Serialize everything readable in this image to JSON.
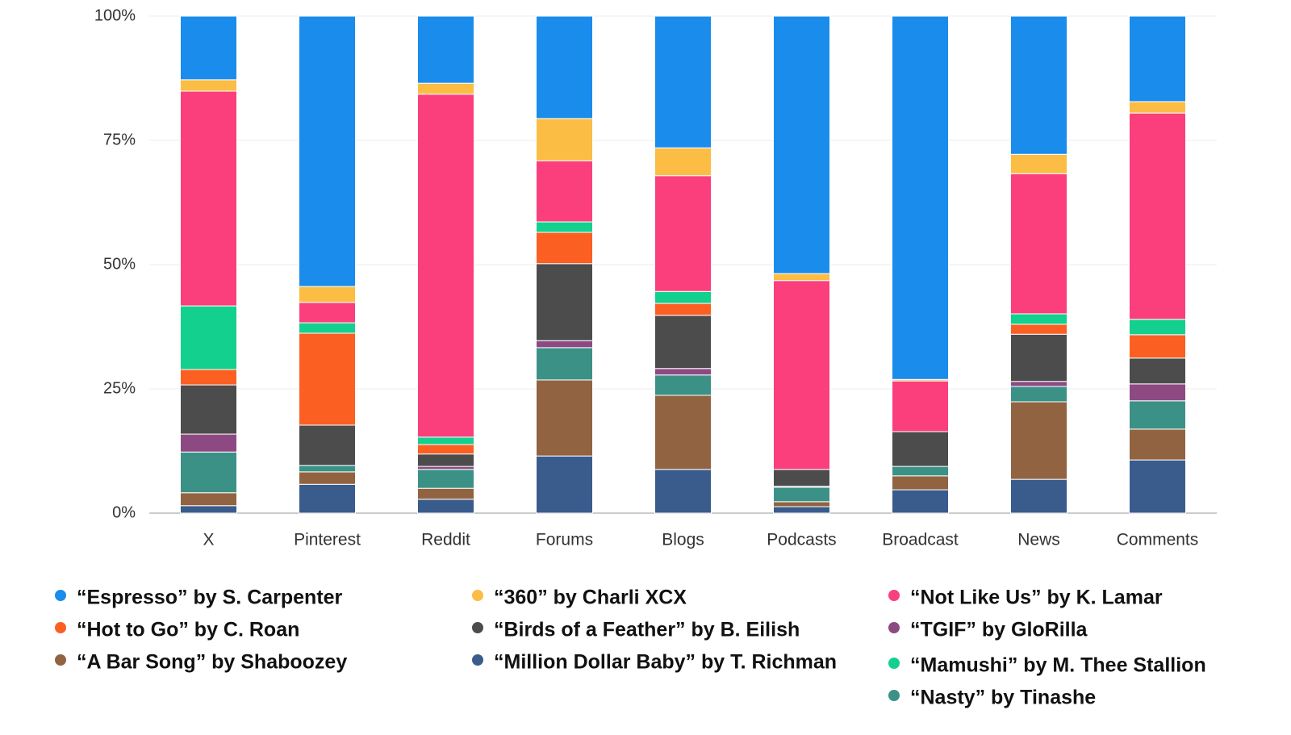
{
  "chart_data": {
    "type": "stacked-bar-100",
    "categories": [
      "X",
      "Pinterest",
      "Reddit",
      "Forums",
      "Blogs",
      "Podcasts",
      "Broadcast",
      "News",
      "Comments"
    ],
    "series": [
      {
        "name": "“Million Dollar Baby” by T. Richman",
        "color": "#3a5c8c",
        "values": [
          1.5,
          5.8,
          2.8,
          11.5,
          8.8,
          1.3,
          4.7,
          6.8,
          10.7
        ]
      },
      {
        "name": "“A Bar Song” by Shaboozey",
        "color": "#926340",
        "values": [
          2.6,
          2.5,
          2.2,
          15.3,
          14.9,
          1.0,
          2.8,
          15.6,
          6.2
        ]
      },
      {
        "name": "“Nasty” by Tinashe",
        "color": "#3c9187",
        "values": [
          8.2,
          1.3,
          3.8,
          6.5,
          4.1,
          2.9,
          1.9,
          3.1,
          5.7
        ]
      },
      {
        "name": "“TGIF” by GloRilla",
        "color": "#8d4a82",
        "values": [
          3.6,
          0,
          0.6,
          1.4,
          1.3,
          0.2,
          0,
          1.0,
          3.4
        ]
      },
      {
        "name": "“Birds of a Feather” by B. Eilish",
        "color": "#4c4c4c",
        "values": [
          9.9,
          8.1,
          2.5,
          15.5,
          10.7,
          3.4,
          7.0,
          9.5,
          5.2
        ]
      },
      {
        "name": "“Hot to Go” by C. Roan",
        "color": "#fb5f22",
        "values": [
          3.1,
          18.5,
          1.9,
          6.3,
          2.4,
          0,
          0,
          2.0,
          4.7
        ]
      },
      {
        "name": "“Mamushi” by M. Thee Stallion",
        "color": "#13d08e",
        "values": [
          12.8,
          2.1,
          1.5,
          2.1,
          2.4,
          0,
          0,
          2.1,
          3.1
        ]
      },
      {
        "name": "“Not Like Us” by K. Lamar",
        "color": "#fb3f7c",
        "values": [
          43.2,
          4.1,
          69.0,
          12.3,
          23.3,
          38.0,
          10.2,
          28.2,
          41.5
        ]
      },
      {
        "name": "“360” by Charli XCX",
        "color": "#fbbd44",
        "values": [
          2.3,
          3.2,
          2.2,
          8.5,
          5.6,
          1.4,
          0.3,
          3.9,
          2.3
        ]
      },
      {
        "name": "“Espresso” by S. Carpenter",
        "color": "#1a8cec",
        "values": [
          12.8,
          54.4,
          13.5,
          20.6,
          26.5,
          51.8,
          73.1,
          27.8,
          17.2
        ]
      }
    ],
    "ylim": [
      0,
      100
    ],
    "yticks": [
      {
        "value": 0,
        "label": "0%"
      },
      {
        "value": 25,
        "label": "25%"
      },
      {
        "value": 50,
        "label": "50%"
      },
      {
        "value": 75,
        "label": "75%"
      },
      {
        "value": 100,
        "label": "100%"
      }
    ],
    "grid": true
  }
}
